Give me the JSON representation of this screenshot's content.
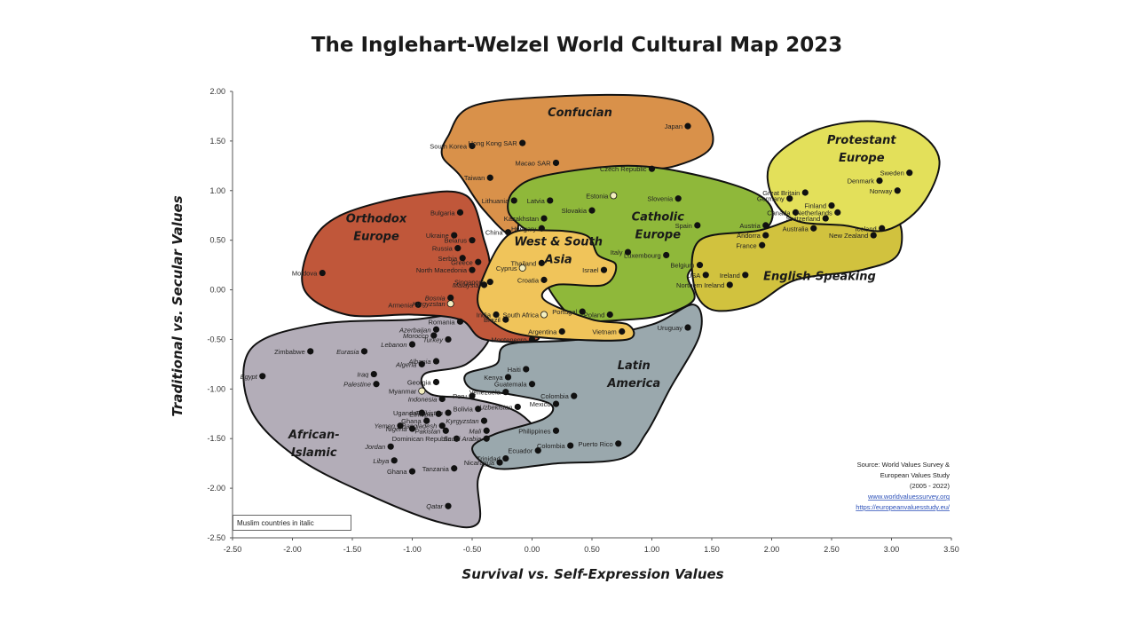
{
  "chart_data": {
    "type": "scatter",
    "title": "The Inglehart-Welzel World Cultural Map 2023",
    "xlabel": "Survival vs. Self-Expression Values",
    "ylabel": "Traditional vs. Secular Values",
    "xlim": [
      -2.5,
      3.5
    ],
    "ylim": [
      -2.5,
      2.0
    ],
    "x_ticks": [
      "-2.50",
      "-2.00",
      "-1.50",
      "-1.00",
      "-0.50",
      "0.00",
      "0.50",
      "1.00",
      "1.50",
      "2.00",
      "2.50",
      "3.00",
      "3.50"
    ],
    "y_ticks": [
      "2.00",
      "1.50",
      "1.00",
      "0.50",
      "0.00",
      "-0.50",
      "-1.00",
      "-1.50",
      "-2.00",
      "-2.50"
    ],
    "grid": false,
    "zones": [
      {
        "name": "Confucian",
        "label": "Confucian",
        "color": "#d9914a"
      },
      {
        "name": "Orthodox Europe",
        "label": "Orthodox\nEurope",
        "color": "#c0573a"
      },
      {
        "name": "Catholic Europe",
        "label": "Catholic\nEurope",
        "color": "#8fb83a"
      },
      {
        "name": "Protestant Europe",
        "label": "Protestant\nEurope",
        "color": "#e3e05a"
      },
      {
        "name": "English-Speaking",
        "label": "English-Speaking",
        "color": "#d1c23e"
      },
      {
        "name": "West & South Asia",
        "label": "West & South\nAsia",
        "color": "#f0c45a"
      },
      {
        "name": "Latin America",
        "label": "Latin\nAmerica",
        "color": "#9aa8ad"
      },
      {
        "name": "African-Islamic",
        "label": "African-\nIslamic",
        "color": "#b3adb8"
      }
    ],
    "points": [
      {
        "name": "Japan",
        "x": 1.3,
        "y": 1.65
      },
      {
        "name": "South Korea",
        "x": -0.5,
        "y": 1.45
      },
      {
        "name": "Hong Kong SAR",
        "x": -0.08,
        "y": 1.48
      },
      {
        "name": "Macao SAR",
        "x": 0.2,
        "y": 1.28
      },
      {
        "name": "Taiwan",
        "x": -0.35,
        "y": 1.13
      },
      {
        "name": "Czech Republic",
        "x": 1.0,
        "y": 1.22
      },
      {
        "name": "Lithuania",
        "x": -0.15,
        "y": 0.9
      },
      {
        "name": "Latvia",
        "x": 0.15,
        "y": 0.9
      },
      {
        "name": "Estonia",
        "x": 0.68,
        "y": 0.95,
        "hollow": true
      },
      {
        "name": "Slovenia",
        "x": 1.22,
        "y": 0.92
      },
      {
        "name": "Slovakia",
        "x": 0.5,
        "y": 0.8
      },
      {
        "name": "Kazakhstan",
        "x": 0.1,
        "y": 0.72
      },
      {
        "name": "China",
        "x": -0.2,
        "y": 0.58
      },
      {
        "name": "Hungary",
        "x": 0.08,
        "y": 0.62
      },
      {
        "name": "Spain",
        "x": 1.38,
        "y": 0.65
      },
      {
        "name": "Austria",
        "x": 1.95,
        "y": 0.65
      },
      {
        "name": "Bulgaria",
        "x": -0.6,
        "y": 0.78
      },
      {
        "name": "Ukraine",
        "x": -0.65,
        "y": 0.55
      },
      {
        "name": "Russia",
        "x": -0.62,
        "y": 0.42
      },
      {
        "name": "Belarus",
        "x": -0.5,
        "y": 0.5
      },
      {
        "name": "Serbia",
        "x": -0.58,
        "y": 0.32
      },
      {
        "name": "Greece",
        "x": -0.45,
        "y": 0.28
      },
      {
        "name": "North Macedonia",
        "x": -0.5,
        "y": 0.2
      },
      {
        "name": "Moldova",
        "x": -1.75,
        "y": 0.17
      },
      {
        "name": "Armenia",
        "x": -0.95,
        "y": -0.15
      },
      {
        "name": "Bosnia",
        "x": -0.68,
        "y": -0.08
      },
      {
        "name": "Kyrgyzstan",
        "x": -0.68,
        "y": -0.14,
        "hollow": true
      },
      {
        "name": "Romania",
        "x": -0.6,
        "y": -0.32
      },
      {
        "name": "Azerbaijan",
        "x": -0.8,
        "y": -0.4
      },
      {
        "name": "Morocco",
        "x": -0.82,
        "y": -0.46
      },
      {
        "name": "Lebanon",
        "x": -1.0,
        "y": -0.55
      },
      {
        "name": "Turkey",
        "x": -0.7,
        "y": -0.5
      },
      {
        "name": "Eurasia",
        "x": -1.4,
        "y": -0.62
      },
      {
        "name": "Zimbabwe",
        "x": -1.85,
        "y": -0.62
      },
      {
        "name": "Albania",
        "x": -0.8,
        "y": -0.72
      },
      {
        "name": "Algeria",
        "x": -0.92,
        "y": -0.75
      },
      {
        "name": "Iraq",
        "x": -1.32,
        "y": -0.85
      },
      {
        "name": "Palestine",
        "x": -1.3,
        "y": -0.95
      },
      {
        "name": "Egypt",
        "x": -2.25,
        "y": -0.87
      },
      {
        "name": "Georgia",
        "x": -0.8,
        "y": -0.93
      },
      {
        "name": "Myanmar",
        "x": -0.92,
        "y": -1.02,
        "hollow": true
      },
      {
        "name": "Indonesia",
        "x": -0.75,
        "y": -1.1
      },
      {
        "name": "Thailand",
        "x": 0.08,
        "y": 0.27
      },
      {
        "name": "Israel",
        "x": 0.6,
        "y": 0.2
      },
      {
        "name": "Cyprus",
        "x": -0.08,
        "y": 0.22,
        "hollow": true
      },
      {
        "name": "Singapore",
        "x": -0.35,
        "y": 0.08
      },
      {
        "name": "Malaysia",
        "x": -0.4,
        "y": 0.05
      },
      {
        "name": "Croatia",
        "x": 0.1,
        "y": 0.1
      },
      {
        "name": "Italy",
        "x": 0.8,
        "y": 0.38
      },
      {
        "name": "Luxembourg",
        "x": 1.12,
        "y": 0.35
      },
      {
        "name": "India",
        "x": -0.3,
        "y": -0.25
      },
      {
        "name": "South Africa",
        "x": 0.1,
        "y": -0.25,
        "hollow": true
      },
      {
        "name": "Brazil",
        "x": -0.22,
        "y": -0.3
      },
      {
        "name": "Portugal",
        "x": 0.42,
        "y": -0.22
      },
      {
        "name": "Poland",
        "x": 0.65,
        "y": -0.25
      },
      {
        "name": "Vietnam",
        "x": 0.75,
        "y": -0.42
      },
      {
        "name": "Argentina",
        "x": 0.25,
        "y": -0.42
      },
      {
        "name": "Montenegro",
        "x": 0.0,
        "y": -0.5
      },
      {
        "name": "Uruguay",
        "x": 1.3,
        "y": -0.38
      },
      {
        "name": "Belgium",
        "x": 1.4,
        "y": 0.25
      },
      {
        "name": "USA",
        "x": 1.45,
        "y": 0.15
      },
      {
        "name": "Northern Ireland",
        "x": 1.65,
        "y": 0.05
      },
      {
        "name": "Ireland",
        "x": 1.78,
        "y": 0.15
      },
      {
        "name": "France",
        "x": 1.92,
        "y": 0.45
      },
      {
        "name": "Andorra",
        "x": 1.95,
        "y": 0.55
      },
      {
        "name": "Germany",
        "x": 2.15,
        "y": 0.92
      },
      {
        "name": "Great Britain",
        "x": 2.28,
        "y": 0.98
      },
      {
        "name": "Canada",
        "x": 2.2,
        "y": 0.78
      },
      {
        "name": "Australia",
        "x": 2.35,
        "y": 0.62
      },
      {
        "name": "Denmark",
        "x": 2.9,
        "y": 1.1
      },
      {
        "name": "Sweden",
        "x": 3.15,
        "y": 1.18
      },
      {
        "name": "Finland",
        "x": 2.5,
        "y": 0.85
      },
      {
        "name": "Netherlands",
        "x": 2.55,
        "y": 0.78
      },
      {
        "name": "Switzerland",
        "x": 2.45,
        "y": 0.72
      },
      {
        "name": "Norway",
        "x": 3.05,
        "y": 1.0
      },
      {
        "name": "Iceland",
        "x": 2.92,
        "y": 0.62
      },
      {
        "name": "New Zealand",
        "x": 2.85,
        "y": 0.55
      },
      {
        "name": "Kenya",
        "x": -0.2,
        "y": -0.88
      },
      {
        "name": "Haiti",
        "x": -0.05,
        "y": -0.8
      },
      {
        "name": "Guatemala",
        "x": 0.0,
        "y": -0.95
      },
      {
        "name": "Peru",
        "x": -0.5,
        "y": -1.07
      },
      {
        "name": "Venezuela",
        "x": -0.22,
        "y": -1.03
      },
      {
        "name": "Colombia",
        "x": 0.35,
        "y": -1.07
      },
      {
        "name": "Bolivia",
        "x": -0.45,
        "y": -1.2
      },
      {
        "name": "Mexico",
        "x": 0.2,
        "y": -1.15
      },
      {
        "name": "Uzbekistan",
        "x": -0.12,
        "y": -1.18
      },
      {
        "name": "Tajikistan",
        "x": -0.7,
        "y": -1.24
      },
      {
        "name": "Uganda",
        "x": -0.92,
        "y": -1.24
      },
      {
        "name": "Ethiopia",
        "x": -0.78,
        "y": -1.25
      },
      {
        "name": "Kyrgyzstan",
        "x": -0.4,
        "y": -1.32
      },
      {
        "name": "Ghana",
        "x": -0.88,
        "y": -1.32
      },
      {
        "name": "Bangladesh",
        "x": -0.75,
        "y": -1.37
      },
      {
        "name": "Pakistan",
        "x": -0.72,
        "y": -1.42
      },
      {
        "name": "Nigeria",
        "x": -1.0,
        "y": -1.4
      },
      {
        "name": "Mali",
        "x": -0.38,
        "y": -1.42
      },
      {
        "name": "Yemen",
        "x": -1.1,
        "y": -1.37
      },
      {
        "name": "Philippines",
        "x": 0.2,
        "y": -1.42
      },
      {
        "name": "Dominican Republic",
        "x": -0.63,
        "y": -1.5
      },
      {
        "name": "Saudi Arabia",
        "x": -0.38,
        "y": -1.5
      },
      {
        "name": "Puerto Rico",
        "x": 0.72,
        "y": -1.55
      },
      {
        "name": "Ecuador",
        "x": 0.05,
        "y": -1.62
      },
      {
        "name": "Jordan",
        "x": -1.18,
        "y": -1.58
      },
      {
        "name": "Colombia",
        "x": 0.32,
        "y": -1.57
      },
      {
        "name": "Libya",
        "x": -1.15,
        "y": -1.72
      },
      {
        "name": "Trinidad",
        "x": -0.22,
        "y": -1.7
      },
      {
        "name": "Nicaragua",
        "x": -0.27,
        "y": -1.74
      },
      {
        "name": "Ghana",
        "x": -1.0,
        "y": -1.83
      },
      {
        "name": "Tanzania",
        "x": -0.65,
        "y": -1.8
      },
      {
        "name": "Qatar",
        "x": -0.7,
        "y": -2.18
      }
    ],
    "annotations": [
      "Source: World Values Survey &",
      "European Values Study",
      "(2005 - 2022)",
      "www.worldvaluessurvey.org",
      "https://europeanvaluesstudy.eu/"
    ],
    "note": "Muslim countries in italic"
  }
}
